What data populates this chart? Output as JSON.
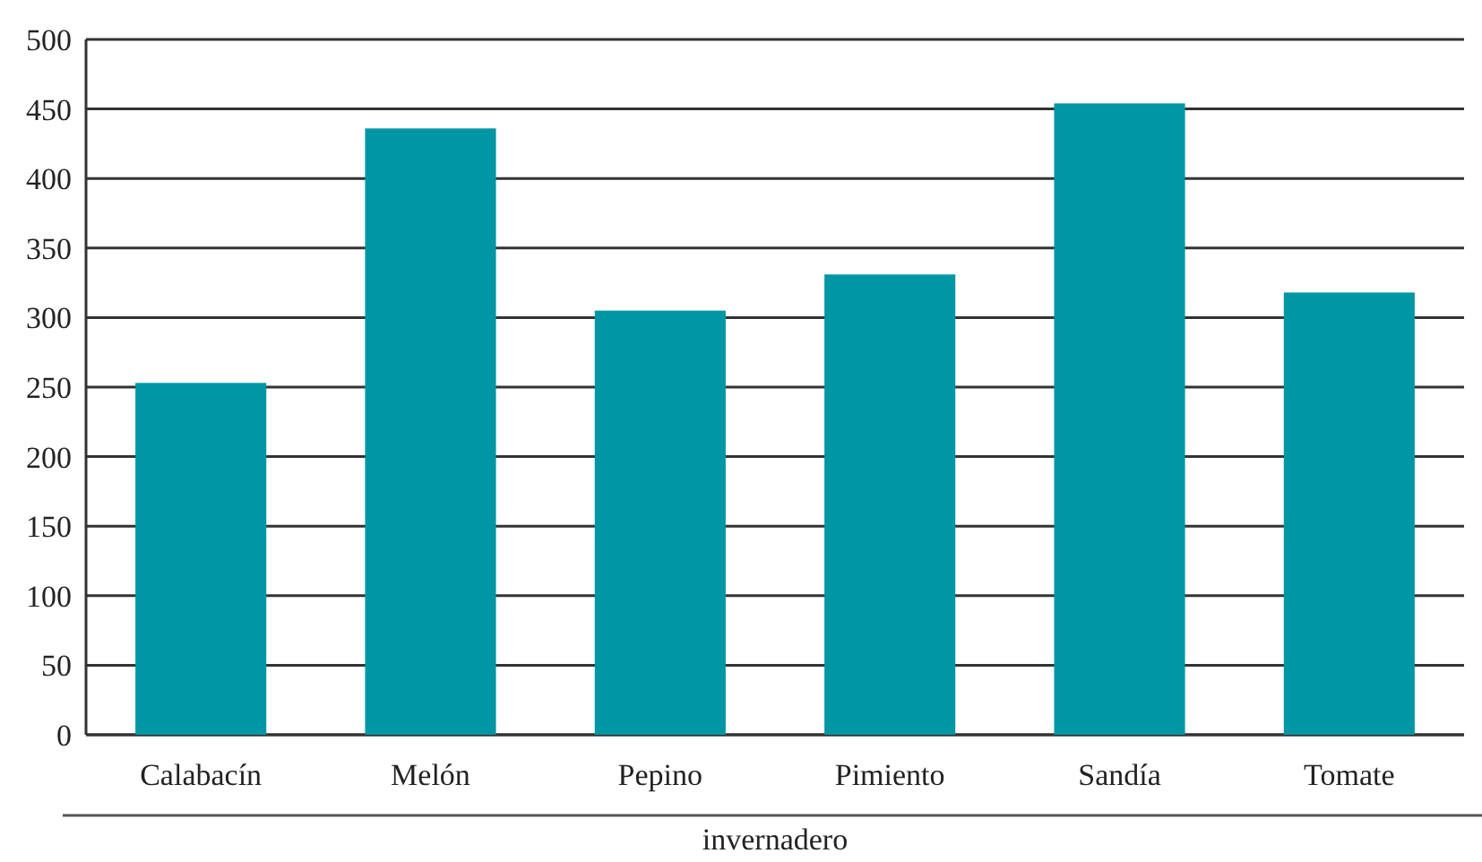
{
  "chart_data": {
    "type": "bar",
    "categories": [
      "Calabacín",
      "Melón",
      "Pepino",
      "Pimiento",
      "Sandía",
      "Tomate"
    ],
    "values": [
      253,
      436,
      305,
      331,
      454,
      318
    ],
    "color": "#0096a4",
    "xlabel": "invernadero",
    "ylim": [
      0,
      500
    ],
    "yticks": [
      0,
      50,
      100,
      150,
      200,
      250,
      300,
      350,
      400,
      450,
      500
    ],
    "grid": "y"
  }
}
